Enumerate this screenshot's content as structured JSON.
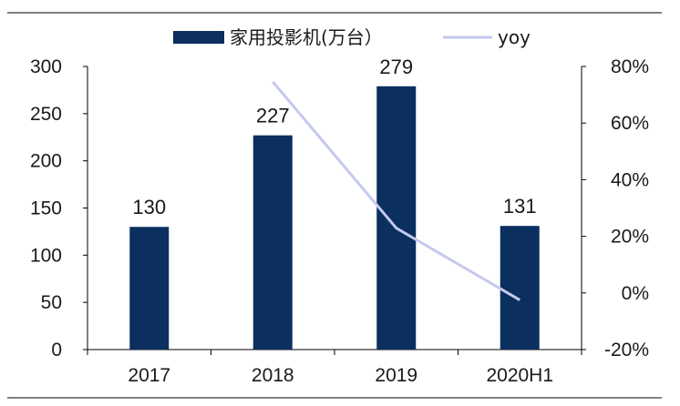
{
  "chart_data": {
    "type": "bar",
    "categories": [
      "2017",
      "2018",
      "2019",
      "2020H1"
    ],
    "series": [
      {
        "name": "家用投影机(万台）",
        "type": "bar",
        "axis": "left",
        "color": "#0b2f5e",
        "values": [
          130,
          227,
          279,
          131
        ],
        "data_labels": [
          "130",
          "227",
          "279",
          "131"
        ]
      },
      {
        "name": "yoy",
        "type": "line",
        "axis": "right",
        "color": "#c5c9ef",
        "values": [
          null,
          74.6,
          22.9,
          -2.5
        ]
      }
    ],
    "y_left": {
      "min": 0,
      "max": 300,
      "ticks": [
        "0",
        "50",
        "100",
        "150",
        "200",
        "250",
        "300"
      ]
    },
    "y_right": {
      "min": -20,
      "max": 80,
      "ticks": [
        "-20%",
        "0%",
        "20%",
        "40%",
        "60%",
        "80%"
      ]
    },
    "legend_position": "top-center",
    "grid": false
  }
}
